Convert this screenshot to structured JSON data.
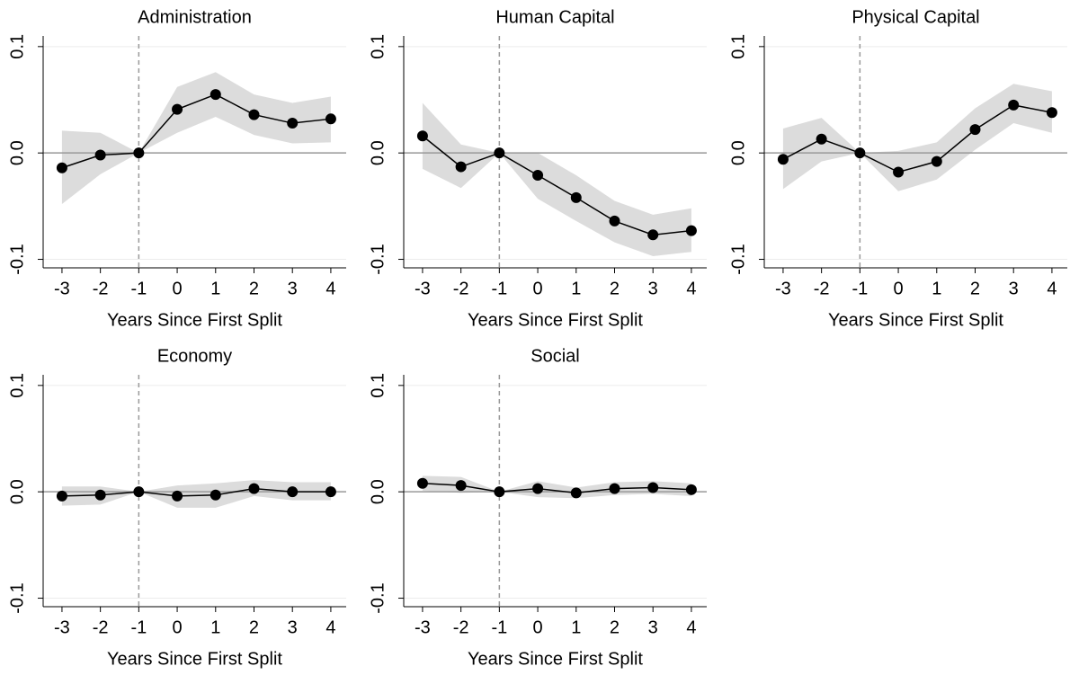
{
  "chart_data": [
    {
      "type": "line",
      "title": "Administration",
      "xlabel": "Years Since First Split",
      "x": [
        -3,
        -2,
        -1,
        0,
        1,
        2,
        3,
        4
      ],
      "xlim": [
        -3.49,
        4.4
      ],
      "xticks": [
        -3,
        -2,
        -1,
        0,
        1,
        2,
        3,
        4
      ],
      "ylim": [
        -0.108,
        0.11
      ],
      "yticks": [
        -0.1,
        {
          "value": 0,
          "label": "0.0"
        },
        0.1
      ],
      "grid": true,
      "hline": 0,
      "vline": -1,
      "series": [
        {
          "color": "#000000",
          "values": [
            -0.014,
            -0.002,
            0,
            0.041,
            0.055,
            0.036,
            0.028,
            0.032
          ]
        }
      ],
      "band": {
        "color": "#dcdcdc",
        "lower": [
          -0.048,
          -0.02,
          0,
          0.019,
          0.034,
          0.017,
          0.009,
          0.01
        ],
        "upper": [
          0.021,
          0.019,
          0,
          0.062,
          0.076,
          0.055,
          0.047,
          0.053
        ]
      }
    },
    {
      "type": "line",
      "title": "Human Capital",
      "xlabel": "Years Since First Split",
      "x": [
        -3,
        -2,
        -1,
        0,
        1,
        2,
        3,
        4
      ],
      "xlim": [
        -3.49,
        4.4
      ],
      "xticks": [
        -3,
        -2,
        -1,
        0,
        1,
        2,
        3,
        4
      ],
      "ylim": [
        -0.108,
        0.11
      ],
      "yticks": [
        -0.1,
        {
          "value": 0,
          "label": "0.0"
        },
        0.1
      ],
      "grid": true,
      "hline": 0,
      "vline": -1,
      "series": [
        {
          "color": "#000000",
          "values": [
            0.016,
            -0.013,
            0,
            -0.021,
            -0.042,
            -0.064,
            -0.077,
            -0.073
          ]
        }
      ],
      "band": {
        "color": "#dcdcdc",
        "lower": [
          -0.015,
          -0.033,
          0,
          -0.043,
          -0.064,
          -0.084,
          -0.097,
          -0.093
        ],
        "upper": [
          0.047,
          0.008,
          0,
          0,
          -0.021,
          -0.045,
          -0.058,
          -0.052
        ]
      }
    },
    {
      "type": "line",
      "title": "Physical Capital",
      "xlabel": "Years Since First Split",
      "x": [
        -3,
        -2,
        -1,
        0,
        1,
        2,
        3,
        4
      ],
      "xlim": [
        -3.49,
        4.4
      ],
      "xticks": [
        -3,
        -2,
        -1,
        0,
        1,
        2,
        3,
        4
      ],
      "ylim": [
        -0.108,
        0.11
      ],
      "yticks": [
        -0.1,
        {
          "value": 0,
          "label": "0.0"
        },
        0.1
      ],
      "grid": true,
      "hline": 0,
      "vline": -1,
      "series": [
        {
          "color": "#000000",
          "values": [
            -0.006,
            0.013,
            0,
            -0.018,
            -0.008,
            0.022,
            0.045,
            0.038
          ]
        }
      ],
      "band": {
        "color": "#dcdcdc",
        "lower": [
          -0.034,
          -0.008,
          0,
          -0.036,
          -0.025,
          0.003,
          0.028,
          0.019
        ],
        "upper": [
          0.023,
          0.033,
          0,
          0.002,
          0.01,
          0.042,
          0.065,
          0.058
        ]
      }
    },
    {
      "type": "line",
      "title": "Economy",
      "xlabel": "Years Since First Split",
      "x": [
        -3,
        -2,
        -1,
        0,
        1,
        2,
        3,
        4
      ],
      "xlim": [
        -3.49,
        4.4
      ],
      "xticks": [
        -3,
        -2,
        -1,
        0,
        1,
        2,
        3,
        4
      ],
      "ylim": [
        -0.108,
        0.11
      ],
      "yticks": [
        -0.1,
        {
          "value": 0,
          "label": "0.0"
        },
        0.1
      ],
      "grid": true,
      "hline": 0,
      "vline": -1,
      "series": [
        {
          "color": "#000000",
          "values": [
            -0.004,
            -0.003,
            0,
            -0.004,
            -0.003,
            0.003,
            0,
            0
          ]
        }
      ],
      "band": {
        "color": "#dcdcdc",
        "lower": [
          -0.013,
          -0.012,
          0,
          -0.015,
          -0.015,
          -0.004,
          -0.008,
          -0.008
        ],
        "upper": [
          0.005,
          0.005,
          0,
          0.006,
          0.008,
          0.011,
          0.009,
          0.009
        ]
      }
    },
    {
      "type": "line",
      "title": "Social",
      "xlabel": "Years Since First Split",
      "x": [
        -3,
        -2,
        -1,
        0,
        1,
        2,
        3,
        4
      ],
      "xlim": [
        -3.49,
        4.4
      ],
      "xticks": [
        -3,
        -2,
        -1,
        0,
        1,
        2,
        3,
        4
      ],
      "ylim": [
        -0.108,
        0.11
      ],
      "yticks": [
        -0.1,
        {
          "value": 0,
          "label": "0.0"
        },
        0.1
      ],
      "grid": true,
      "hline": 0,
      "vline": -1,
      "series": [
        {
          "color": "#000000",
          "values": [
            0.008,
            0.006,
            0,
            0.003,
            -0.001,
            0.003,
            0.004,
            0.002
          ]
        }
      ],
      "band": {
        "color": "#dcdcdc",
        "lower": [
          0.001,
          -0.001,
          0,
          -0.005,
          -0.006,
          -0.003,
          -0.002,
          -0.004
        ],
        "upper": [
          0.015,
          0.014,
          0,
          0.01,
          0.004,
          0.009,
          0.01,
          0.008
        ]
      }
    }
  ]
}
